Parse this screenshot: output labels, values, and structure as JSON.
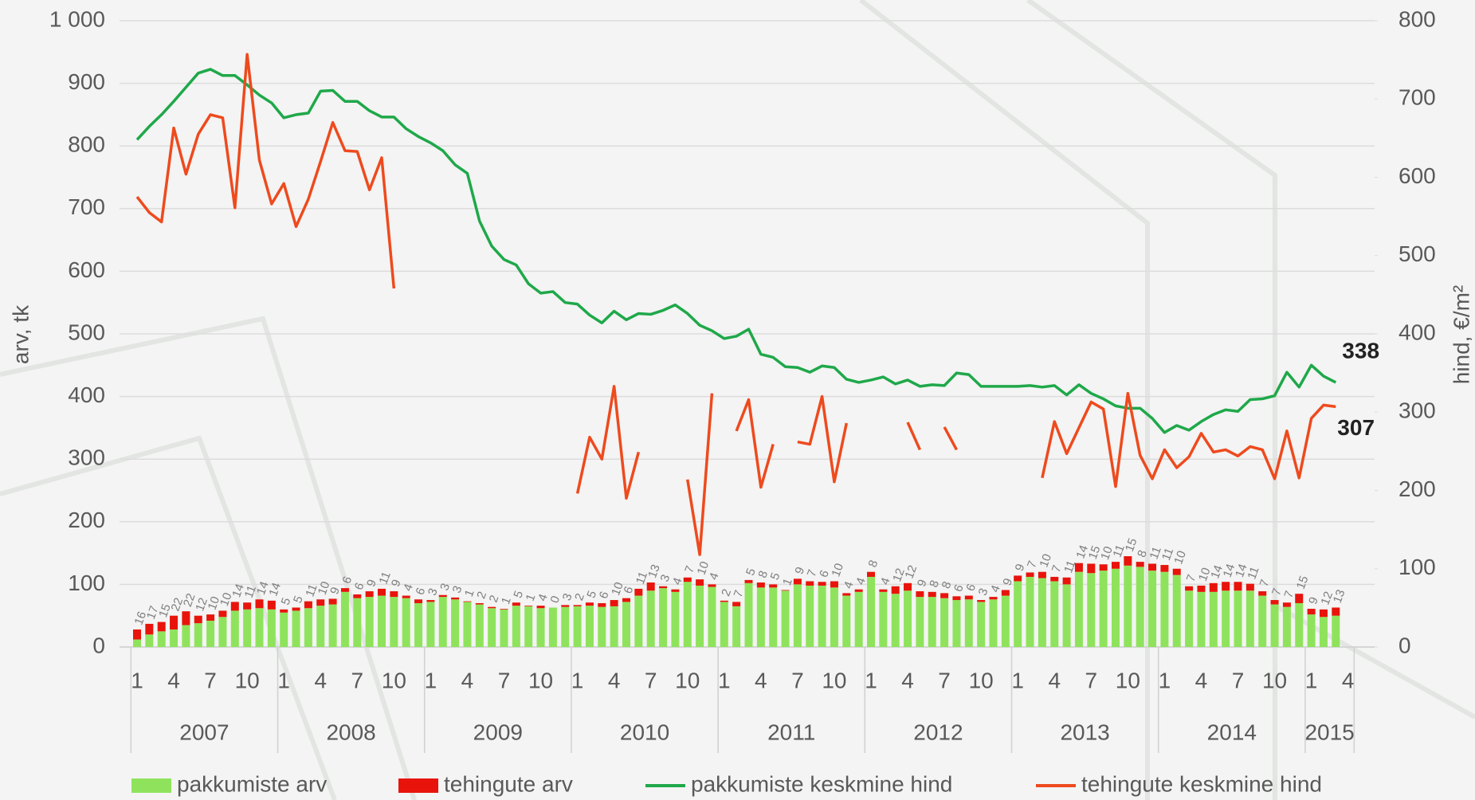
{
  "chart_data": {
    "type": "bar",
    "ylabel": "arv, tk",
    "y2label": "hind, €/m²",
    "ylim": [
      0,
      1000
    ],
    "yticks": [
      0,
      100,
      200,
      300,
      400,
      500,
      600,
      700,
      800,
      900,
      {
        "value": 1000,
        "label": "1 000"
      }
    ],
    "y2lim": [
      0,
      800
    ],
    "y2ticks": [
      0,
      100,
      200,
      300,
      400,
      500,
      600,
      700,
      800
    ],
    "grid": true,
    "legend": "bottom",
    "categories": [
      "1",
      null,
      null,
      "4",
      null,
      null,
      "7",
      null,
      null,
      "10",
      null,
      null,
      "1",
      null,
      null,
      "4",
      null,
      null,
      "7",
      null,
      null,
      "10",
      null,
      null,
      "1",
      null,
      null,
      "4",
      null,
      null,
      "7",
      null,
      null,
      "10",
      null,
      null,
      "1",
      null,
      null,
      "4",
      null,
      null,
      "7",
      null,
      null,
      "10",
      null,
      null,
      "1",
      null,
      null,
      "4",
      null,
      null,
      "7",
      null,
      null,
      "10",
      null,
      null,
      "1",
      null,
      null,
      "4",
      null,
      null,
      "7",
      null,
      null,
      "10",
      null,
      null,
      "1",
      null,
      null,
      "4",
      null,
      null,
      "7",
      null,
      null,
      "10",
      null,
      null,
      "1",
      null,
      null,
      "4",
      null,
      null,
      "7",
      null,
      null,
      "10",
      null,
      null,
      "1",
      null,
      null,
      "4"
    ],
    "years": [
      "2007",
      "2008",
      "2009",
      "2010",
      "2011",
      "2012",
      "2013",
      "2014",
      "2015"
    ],
    "series": [
      {
        "name": "pakkumiste arv",
        "type": "bar",
        "color": "#8fe35c",
        "values": [
          12,
          20,
          25,
          28,
          35,
          38,
          42,
          48,
          58,
          60,
          62,
          60,
          55,
          58,
          62,
          66,
          68,
          88,
          78,
          80,
          82,
          80,
          78,
          70,
          72,
          80,
          76,
          72,
          68,
          62,
          60,
          66,
          65,
          62,
          63,
          64,
          65,
          66,
          64,
          65,
          72,
          82,
          90,
          94,
          88,
          104,
          98,
          96,
          72,
          65,
          102,
          95,
          95,
          90,
          100,
          98,
          98,
          95,
          82,
          88,
          112,
          88,
          85,
          90,
          80,
          80,
          78,
          75,
          76,
          72,
          76,
          82,
          105,
          112,
          110,
          105,
          100,
          120,
          118,
          122,
          125,
          130,
          128,
          122,
          120,
          115,
          90,
          88,
          88,
          90,
          90,
          90,
          82,
          68,
          64,
          70,
          52,
          48,
          50,
          null
        ]
      },
      {
        "name": "tehingute arv",
        "type": "bar",
        "color": "#e8140c",
        "values": [
          16,
          17,
          15,
          22,
          22,
          12,
          10,
          10,
          14,
          11,
          14,
          14,
          5,
          5,
          11,
          10,
          9,
          6,
          6,
          9,
          11,
          9,
          4,
          6,
          3,
          3,
          3,
          1,
          2,
          2,
          1,
          5,
          1,
          4,
          0,
          3,
          2,
          5,
          6,
          10,
          6,
          11,
          13,
          3,
          4,
          7,
          10,
          4,
          2,
          7,
          5,
          8,
          5,
          1,
          9,
          7,
          6,
          10,
          4,
          4,
          8,
          4,
          12,
          12,
          9,
          8,
          8,
          6,
          6,
          3,
          4,
          9,
          9,
          7,
          10,
          7,
          11,
          14,
          15,
          10,
          11,
          15,
          8,
          11,
          11,
          10,
          7,
          10,
          14,
          14,
          14,
          11,
          7,
          7,
          7,
          15,
          9,
          12,
          13,
          null
        ]
      },
      {
        "name": "pakkumiste keskmine hind",
        "type": "line",
        "axis": "y2",
        "color": "#1fa84a",
        "values": [
          648,
          665,
          680,
          697,
          715,
          733,
          738,
          730,
          730,
          718,
          705,
          695,
          676,
          680,
          682,
          710,
          711,
          697,
          697,
          685,
          677,
          677,
          662,
          652,
          644,
          634,
          616,
          605,
          544,
          512,
          495,
          488,
          464,
          452,
          454,
          440,
          438,
          424,
          414,
          429,
          418,
          426,
          425,
          430,
          437,
          426,
          411,
          404,
          394,
          397,
          406,
          374,
          370,
          358,
          357,
          351,
          359,
          357,
          342,
          338,
          341,
          345,
          336,
          341,
          333,
          335,
          334,
          350,
          348,
          333,
          333,
          333,
          333,
          334,
          332,
          334,
          322,
          335,
          324,
          317,
          308,
          305,
          305,
          292,
          274,
          283,
          277,
          288,
          297,
          303,
          301,
          316,
          317,
          321,
          351,
          332,
          360,
          346,
          338,
          null
        ]
      },
      {
        "name": "tehingute keskmine hind",
        "type": "line",
        "axis": "y2",
        "color": "#ee4a1e",
        "values": [
          575,
          555,
          543,
          663,
          604,
          655,
          680,
          676,
          561,
          757,
          622,
          566,
          592,
          537,
          572,
          620,
          670,
          634,
          633,
          584,
          625,
          458,
          null,
          null,
          null,
          null,
          null,
          null,
          null,
          null,
          null,
          null,
          null,
          null,
          null,
          null,
          196,
          268,
          240,
          333,
          190,
          249,
          null,
          null,
          null,
          214,
          118,
          324,
          null,
          276,
          316,
          204,
          259,
          null,
          262,
          259,
          320,
          211,
          286,
          null,
          null,
          null,
          null,
          287,
          252,
          null,
          281,
          252,
          null,
          null,
          null,
          null,
          null,
          null,
          216,
          288,
          247,
          280,
          313,
          304,
          205,
          324,
          245,
          215,
          252,
          229,
          243,
          273,
          249,
          252,
          244,
          256,
          252,
          215,
          276,
          216,
          292,
          309,
          307,
          null
        ]
      }
    ]
  }
}
